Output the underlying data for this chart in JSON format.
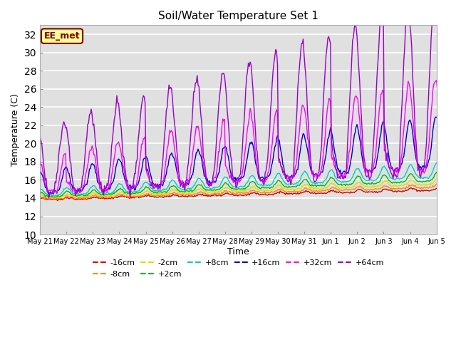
{
  "title": "Soil/Water Temperature Set 1",
  "xlabel": "Time",
  "ylabel": "Temperature (C)",
  "ylim": [
    10,
    33
  ],
  "yticks": [
    10,
    12,
    14,
    16,
    18,
    20,
    22,
    24,
    26,
    28,
    30,
    32
  ],
  "background_color": "#ffffff",
  "plot_bg_color": "#e0e0e0",
  "annotation_text": "EE_met",
  "annotation_bg": "#ffff99",
  "annotation_border": "#800000",
  "annotation_text_color": "#800000",
  "series_colors": {
    "-16cm": "#dd0000",
    "-8cm": "#ff8800",
    "-2cm": "#dddd00",
    "+2cm": "#00bb00",
    "+8cm": "#00cccc",
    "+16cm": "#0000cc",
    "+32cm": "#ff00ff",
    "+64cm": "#9900cc"
  },
  "x_labels": [
    "May 21",
    "May 22",
    "May 23",
    "May 24",
    "May 25",
    "May 26",
    "May 27",
    "May 28",
    "May 29",
    "May 30",
    "May 31",
    "Jun 1",
    "Jun 2",
    "Jun 3",
    "Jun 4",
    "Jun 5"
  ],
  "n_points": 480
}
